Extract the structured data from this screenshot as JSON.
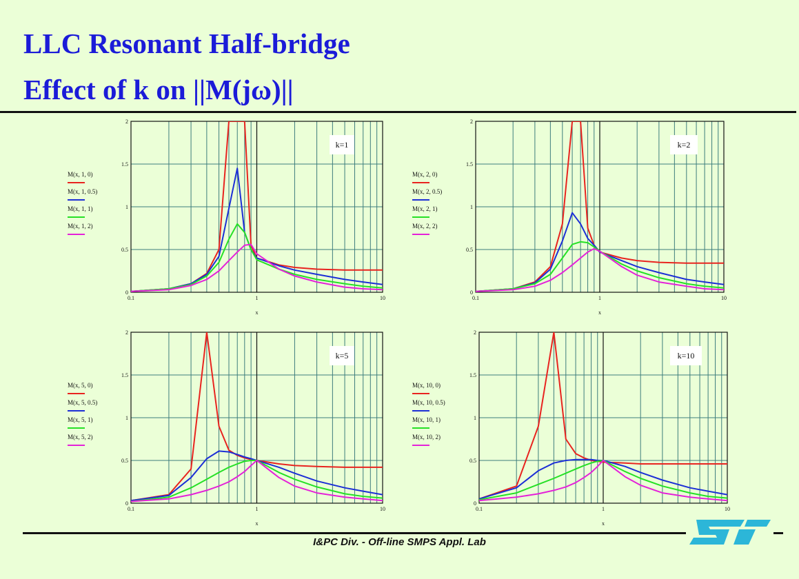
{
  "slide": {
    "title_line1": "LLC Resonant Half-bridge",
    "title_line2": "Effect of k on ||M(jω)||",
    "footer": "I&PC Div. - Off-line SMPS Appl. Lab",
    "logo": "ST"
  },
  "colors": {
    "background": "#ebffd7",
    "title": "#1b1bd8",
    "plot_bg": "#ebffd7",
    "grid": "#3d7c7c",
    "series": [
      "#e8231f",
      "#1c2ed6",
      "#25e025",
      "#e421d8"
    ],
    "logo": "#2cb6d8"
  },
  "chart_data": [
    {
      "type": "line",
      "x_scale": "log",
      "xlim": [
        0.1,
        10
      ],
      "ylim": [
        0,
        2
      ],
      "x_ticks": [
        "0.1",
        "1",
        "10"
      ],
      "y_ticks": [
        "0",
        "0.5",
        "1",
        "1.5",
        "2"
      ],
      "xlabel": "x",
      "grid": true,
      "annotation": "k=1",
      "x": [
        0.1,
        0.2,
        0.3,
        0.4,
        0.5,
        0.6,
        0.7,
        0.8,
        0.9,
        1.0,
        1.5,
        2.0,
        3.0,
        5.0,
        7.0,
        10.0
      ],
      "series": [
        {
          "name": "M(x, 1, 0)",
          "values": [
            0.01,
            0.04,
            0.1,
            0.22,
            0.5,
            2.0,
            2.0,
            2.0,
            0.55,
            0.4,
            0.32,
            0.29,
            0.27,
            0.26,
            0.26,
            0.26
          ]
        },
        {
          "name": "M(x, 1, 0.5)",
          "values": [
            0.01,
            0.04,
            0.1,
            0.21,
            0.42,
            0.98,
            1.45,
            0.7,
            0.5,
            0.4,
            0.31,
            0.26,
            0.21,
            0.15,
            0.12,
            0.09
          ]
        },
        {
          "name": "M(x, 1, 1)",
          "values": [
            0.01,
            0.04,
            0.09,
            0.19,
            0.35,
            0.62,
            0.8,
            0.7,
            0.5,
            0.38,
            0.27,
            0.21,
            0.15,
            0.1,
            0.07,
            0.05
          ]
        },
        {
          "name": "M(x, 1, 2)",
          "values": [
            0.01,
            0.03,
            0.08,
            0.15,
            0.25,
            0.37,
            0.47,
            0.55,
            0.56,
            0.45,
            0.27,
            0.19,
            0.12,
            0.06,
            0.04,
            0.03
          ]
        }
      ]
    },
    {
      "type": "line",
      "x_scale": "log",
      "xlim": [
        0.1,
        10
      ],
      "ylim": [
        0,
        2
      ],
      "x_ticks": [
        "0.1",
        "1",
        "10"
      ],
      "y_ticks": [
        "0",
        "0.5",
        "1",
        "1.5",
        "2"
      ],
      "xlabel": "x",
      "grid": true,
      "annotation": "k=2",
      "x": [
        0.1,
        0.2,
        0.3,
        0.4,
        0.5,
        0.6,
        0.7,
        0.8,
        0.9,
        1.0,
        1.5,
        2.0,
        3.0,
        5.0,
        7.0,
        10.0
      ],
      "series": [
        {
          "name": "M(x, 2, 0)",
          "values": [
            0.01,
            0.04,
            0.12,
            0.3,
            0.8,
            2.0,
            2.0,
            0.75,
            0.55,
            0.47,
            0.4,
            0.37,
            0.35,
            0.34,
            0.34,
            0.34
          ]
        },
        {
          "name": "M(x, 2, 0.5)",
          "values": [
            0.01,
            0.04,
            0.11,
            0.27,
            0.6,
            0.93,
            0.8,
            0.63,
            0.55,
            0.47,
            0.37,
            0.3,
            0.23,
            0.15,
            0.12,
            0.09
          ]
        },
        {
          "name": "M(x, 2, 1)",
          "values": [
            0.01,
            0.04,
            0.1,
            0.21,
            0.4,
            0.56,
            0.59,
            0.58,
            0.53,
            0.48,
            0.33,
            0.25,
            0.17,
            0.1,
            0.07,
            0.05
          ]
        },
        {
          "name": "M(x, 2, 2)",
          "values": [
            0.01,
            0.03,
            0.07,
            0.14,
            0.23,
            0.32,
            0.4,
            0.47,
            0.51,
            0.48,
            0.3,
            0.2,
            0.12,
            0.07,
            0.04,
            0.03
          ]
        }
      ]
    },
    {
      "type": "line",
      "x_scale": "log",
      "xlim": [
        0.1,
        10
      ],
      "ylim": [
        0,
        2
      ],
      "x_ticks": [
        "0.1",
        "1",
        "10"
      ],
      "y_ticks": [
        "0",
        "0.5",
        "1",
        "1.5",
        "2"
      ],
      "xlabel": "x",
      "grid": true,
      "annotation": "k=5",
      "x": [
        0.1,
        0.2,
        0.3,
        0.4,
        0.5,
        0.6,
        0.7,
        0.8,
        0.9,
        1.0,
        1.5,
        2.0,
        3.0,
        5.0,
        7.0,
        10.0
      ],
      "series": [
        {
          "name": "M(x, 5, 0)",
          "values": [
            0.03,
            0.1,
            0.4,
            2.0,
            0.9,
            0.62,
            0.56,
            0.53,
            0.51,
            0.5,
            0.46,
            0.44,
            0.43,
            0.42,
            0.42,
            0.42
          ]
        },
        {
          "name": "M(x, 5, 0.5)",
          "values": [
            0.03,
            0.09,
            0.3,
            0.52,
            0.61,
            0.6,
            0.57,
            0.54,
            0.52,
            0.5,
            0.42,
            0.35,
            0.26,
            0.18,
            0.14,
            0.1
          ]
        },
        {
          "name": "M(x, 5, 1)",
          "values": [
            0.02,
            0.07,
            0.18,
            0.28,
            0.36,
            0.42,
            0.46,
            0.49,
            0.5,
            0.5,
            0.36,
            0.28,
            0.19,
            0.11,
            0.08,
            0.06
          ]
        },
        {
          "name": "M(x, 5, 2)",
          "values": [
            0.02,
            0.05,
            0.1,
            0.15,
            0.2,
            0.25,
            0.31,
            0.37,
            0.44,
            0.5,
            0.3,
            0.2,
            0.12,
            0.07,
            0.05,
            0.03
          ]
        }
      ]
    },
    {
      "type": "line",
      "x_scale": "log",
      "xlim": [
        0.1,
        10
      ],
      "ylim": [
        0,
        2
      ],
      "x_ticks": [
        "0.1",
        "1",
        "10"
      ],
      "y_ticks": [
        "0",
        "0.5",
        "1",
        "1.5",
        "2"
      ],
      "xlabel": "x",
      "grid": true,
      "annotation": "k=10",
      "x": [
        0.1,
        0.2,
        0.3,
        0.4,
        0.5,
        0.6,
        0.7,
        0.8,
        0.9,
        1.0,
        1.5,
        2.0,
        3.0,
        5.0,
        7.0,
        10.0
      ],
      "series": [
        {
          "name": "M(x, 10, 0)",
          "values": [
            0.05,
            0.2,
            0.9,
            2.0,
            0.75,
            0.58,
            0.53,
            0.5,
            0.49,
            0.48,
            0.47,
            0.46,
            0.46,
            0.46,
            0.46,
            0.46
          ]
        },
        {
          "name": "M(x, 10, 0.5)",
          "values": [
            0.05,
            0.18,
            0.38,
            0.47,
            0.5,
            0.51,
            0.51,
            0.51,
            0.5,
            0.5,
            0.43,
            0.36,
            0.27,
            0.18,
            0.14,
            0.1
          ]
        },
        {
          "name": "M(x, 10, 1)",
          "values": [
            0.04,
            0.12,
            0.22,
            0.29,
            0.35,
            0.4,
            0.44,
            0.47,
            0.49,
            0.5,
            0.37,
            0.29,
            0.2,
            0.12,
            0.08,
            0.06
          ]
        },
        {
          "name": "M(x, 10, 2)",
          "values": [
            0.03,
            0.07,
            0.11,
            0.15,
            0.19,
            0.24,
            0.3,
            0.36,
            0.43,
            0.5,
            0.31,
            0.21,
            0.12,
            0.07,
            0.05,
            0.03
          ]
        }
      ]
    }
  ]
}
